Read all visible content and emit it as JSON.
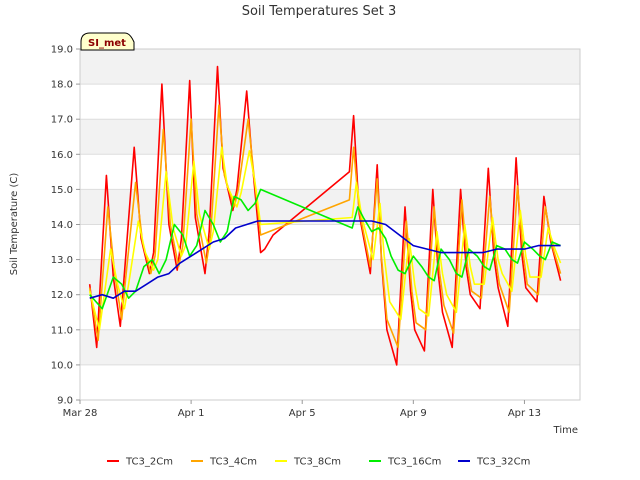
{
  "chart_data": {
    "type": "line",
    "title": "Soil Temperatures Set 3",
    "xlabel": "Time",
    "ylabel": "Soil Temperature (C)",
    "badge": "SI_met",
    "xlim": [
      0,
      18.0
    ],
    "ylim": [
      9.0,
      19.0
    ],
    "yticks": [
      "9.0",
      "10.0",
      "11.0",
      "12.0",
      "13.0",
      "14.0",
      "15.0",
      "16.0",
      "17.0",
      "18.0",
      "19.0"
    ],
    "xticks": [
      {
        "label": "Mar 28",
        "value": 0
      },
      {
        "label": "Apr 1",
        "value": 4
      },
      {
        "label": "Apr 5",
        "value": 8
      },
      {
        "label": "Apr 9",
        "value": 12
      },
      {
        "label": "Apr 13",
        "value": 16
      }
    ],
    "grid": true,
    "legend_position": "bottom",
    "series": [
      {
        "name": "TC3_2Cm",
        "color": "#ff0000",
        "x": [
          0.35,
          0.6,
          0.95,
          1.2,
          1.45,
          1.6,
          1.95,
          2.2,
          2.5,
          2.65,
          2.95,
          3.2,
          3.5,
          3.65,
          3.95,
          4.15,
          4.5,
          4.65,
          4.95,
          5.15,
          5.5,
          5.65,
          6.0,
          6.2,
          6.5,
          6.65,
          6.8,
          6.95,
          9.7,
          9.85,
          10.05,
          10.45,
          10.7,
          10.85,
          11.05,
          11.4,
          11.7,
          11.9,
          12.05,
          12.4,
          12.7,
          12.9,
          13.05,
          13.4,
          13.7,
          13.9,
          14.05,
          14.4,
          14.7,
          14.9,
          15.05,
          15.4,
          15.7,
          15.9,
          16.05,
          16.45,
          16.7,
          16.95,
          17.3
        ],
        "y": [
          12.3,
          10.5,
          15.4,
          12.5,
          11.1,
          12.6,
          16.2,
          13.6,
          12.6,
          13.2,
          18.0,
          14.0,
          12.7,
          13.6,
          18.1,
          14.2,
          12.6,
          13.8,
          18.5,
          15.6,
          14.4,
          15.0,
          17.8,
          15.8,
          13.2,
          13.3,
          13.5,
          13.7,
          15.5,
          17.1,
          14.3,
          12.6,
          15.7,
          13.0,
          11.0,
          10.0,
          14.5,
          12.1,
          11.0,
          10.4,
          15.0,
          12.6,
          11.5,
          10.5,
          15.0,
          12.8,
          12.0,
          11.6,
          15.6,
          13.1,
          12.2,
          11.1,
          15.9,
          13.2,
          12.2,
          11.8,
          14.8,
          13.5,
          12.4
        ]
      },
      {
        "name": "TC3_4Cm",
        "color": "#ffa500",
        "x": [
          0.35,
          0.65,
          1.0,
          1.25,
          1.5,
          1.65,
          2.0,
          2.25,
          2.55,
          2.7,
          3.0,
          3.25,
          3.55,
          3.7,
          4.0,
          4.2,
          4.55,
          4.7,
          5.0,
          5.2,
          5.55,
          5.7,
          6.05,
          6.25,
          6.5,
          9.7,
          9.85,
          10.05,
          10.45,
          10.7,
          10.85,
          11.05,
          11.45,
          11.75,
          11.95,
          12.1,
          12.45,
          12.75,
          12.95,
          13.1,
          13.45,
          13.75,
          13.95,
          14.1,
          14.45,
          14.75,
          14.95,
          15.1,
          15.45,
          15.75,
          15.95,
          16.1,
          16.5,
          16.75,
          17.0,
          17.3
        ],
        "y": [
          12.2,
          10.7,
          14.5,
          12.6,
          11.3,
          12.5,
          15.2,
          13.5,
          12.6,
          13.1,
          16.7,
          14.0,
          12.8,
          13.4,
          17.0,
          14.3,
          12.9,
          13.7,
          17.4,
          15.4,
          14.5,
          15.0,
          17.0,
          15.5,
          13.7,
          14.7,
          16.2,
          14.4,
          12.8,
          15.3,
          13.1,
          11.3,
          10.5,
          14.1,
          12.1,
          11.2,
          11.0,
          14.5,
          12.6,
          11.7,
          10.9,
          14.7,
          12.8,
          12.1,
          11.9,
          14.8,
          13.1,
          12.3,
          11.5,
          15.1,
          13.2,
          12.3,
          12.0,
          14.5,
          13.4,
          12.6
        ]
      },
      {
        "name": "TC3_8Cm",
        "color": "#ffff00",
        "x": [
          0.35,
          0.7,
          1.1,
          1.35,
          1.6,
          1.75,
          2.1,
          2.35,
          2.65,
          2.8,
          3.1,
          3.35,
          3.65,
          3.8,
          4.1,
          4.3,
          4.65,
          4.8,
          5.1,
          5.3,
          5.65,
          5.8,
          6.1,
          6.3,
          6.5,
          9.8,
          9.95,
          10.15,
          10.55,
          10.8,
          10.95,
          11.15,
          11.55,
          11.85,
          12.05,
          12.2,
          12.55,
          12.85,
          13.05,
          13.2,
          13.55,
          13.85,
          14.05,
          14.2,
          14.55,
          14.85,
          15.05,
          15.2,
          15.55,
          15.85,
          16.05,
          16.2,
          16.6,
          16.85,
          17.1,
          17.3
        ],
        "y": [
          12.1,
          11.0,
          13.3,
          12.3,
          11.6,
          12.3,
          14.1,
          13.2,
          12.7,
          13.0,
          15.5,
          13.9,
          13.1,
          13.4,
          15.8,
          14.3,
          13.3,
          13.8,
          16.2,
          15.1,
          14.5,
          14.9,
          16.1,
          15.2,
          14.0,
          14.2,
          15.2,
          14.2,
          13.0,
          14.6,
          13.1,
          11.8,
          11.3,
          13.6,
          12.3,
          11.6,
          11.4,
          13.8,
          12.6,
          12.0,
          11.5,
          14.0,
          12.8,
          12.3,
          12.3,
          14.2,
          13.0,
          12.6,
          12.1,
          14.4,
          13.1,
          12.5,
          12.5,
          13.9,
          13.3,
          12.9
        ]
      },
      {
        "name": "TC3_16Cm",
        "color": "#00ee00",
        "x": [
          0.35,
          0.8,
          1.2,
          1.5,
          1.75,
          2.0,
          2.3,
          2.6,
          2.85,
          3.1,
          3.4,
          3.7,
          3.95,
          4.2,
          4.5,
          4.8,
          5.05,
          5.3,
          5.55,
          5.8,
          6.05,
          6.3,
          6.5,
          9.8,
          10.0,
          10.2,
          10.5,
          10.75,
          11.0,
          11.2,
          11.45,
          11.7,
          12.0,
          12.3,
          12.55,
          12.75,
          13.0,
          13.3,
          13.55,
          13.75,
          14.0,
          14.3,
          14.55,
          14.75,
          15.0,
          15.3,
          15.55,
          15.75,
          16.0,
          16.3,
          16.55,
          16.75,
          17.0,
          17.3
        ],
        "y": [
          12.0,
          11.6,
          12.5,
          12.3,
          11.9,
          12.1,
          12.8,
          13.0,
          12.6,
          13.0,
          14.0,
          13.7,
          13.1,
          13.4,
          14.4,
          14.0,
          13.5,
          13.8,
          14.8,
          14.7,
          14.4,
          14.6,
          15.0,
          13.9,
          14.5,
          14.2,
          13.8,
          13.9,
          13.6,
          13.1,
          12.7,
          12.6,
          13.1,
          12.8,
          12.5,
          12.4,
          13.3,
          13.0,
          12.6,
          12.5,
          13.3,
          13.1,
          12.8,
          12.7,
          13.4,
          13.3,
          13.0,
          12.9,
          13.5,
          13.3,
          13.1,
          13.0,
          13.5,
          13.4
        ]
      },
      {
        "name": "TC3_32Cm",
        "color": "#0000cc",
        "x": [
          0.35,
          0.8,
          1.2,
          1.6,
          2.0,
          2.4,
          2.8,
          3.2,
          3.6,
          4.0,
          4.4,
          4.8,
          5.2,
          5.6,
          6.0,
          6.4,
          6.7,
          9.0,
          10.0,
          10.5,
          11.0,
          11.5,
          12.0,
          12.5,
          13.0,
          13.5,
          14.0,
          14.5,
          15.0,
          15.5,
          16.0,
          16.5,
          17.0,
          17.3
        ],
        "y": [
          11.9,
          12.0,
          11.9,
          12.1,
          12.1,
          12.3,
          12.5,
          12.6,
          12.9,
          13.1,
          13.3,
          13.5,
          13.6,
          13.9,
          14.0,
          14.1,
          14.1,
          14.1,
          14.1,
          14.1,
          14.0,
          13.7,
          13.4,
          13.3,
          13.2,
          13.2,
          13.2,
          13.2,
          13.3,
          13.3,
          13.3,
          13.4,
          13.4,
          13.4
        ]
      }
    ]
  }
}
